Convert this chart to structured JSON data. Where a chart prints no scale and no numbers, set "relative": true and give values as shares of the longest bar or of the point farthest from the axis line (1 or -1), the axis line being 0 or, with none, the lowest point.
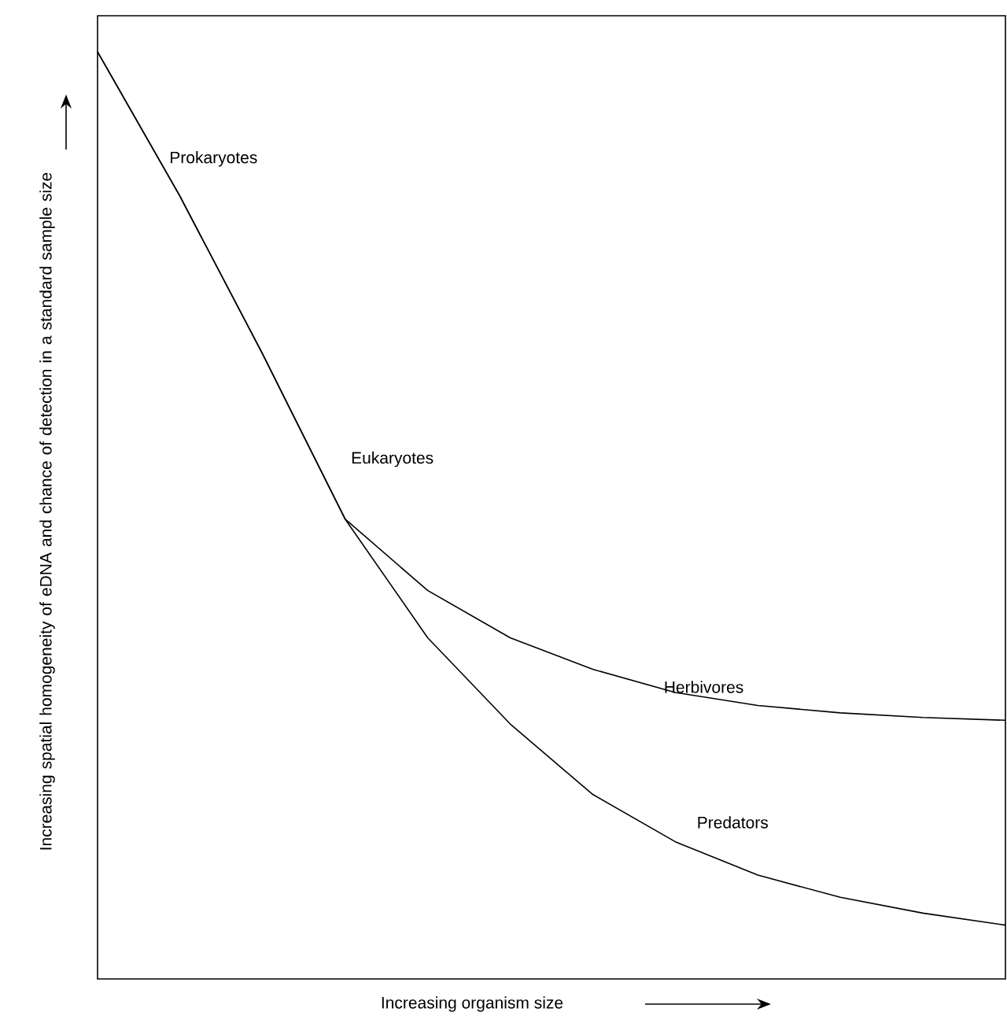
{
  "chart_data": {
    "type": "line",
    "relative": true,
    "xlabel": "Increasing organism size",
    "ylabel": "Increasing spatial homogeneity of eDNA and chance of detection in a standard sample size",
    "categories": [
      null,
      null,
      null,
      null,
      null,
      null,
      null,
      null,
      null,
      null,
      null,
      null
    ],
    "annotations": [
      "Prokaryotes",
      "Eukaryotes"
    ],
    "series": [
      {
        "name": "Herbivores",
        "color": "#000000",
        "values": [
          1.0,
          0.844,
          0.674,
          0.496,
          0.419,
          0.368,
          0.334,
          0.309,
          0.295,
          0.287,
          0.282,
          0.279
        ]
      },
      {
        "name": "Predators",
        "color": "#000000",
        "values": [
          1.0,
          0.844,
          0.674,
          0.496,
          0.368,
          0.275,
          0.199,
          0.148,
          0.112,
          0.088,
          0.071,
          0.058
        ]
      }
    ],
    "marker": "none",
    "line_style": "solid"
  }
}
